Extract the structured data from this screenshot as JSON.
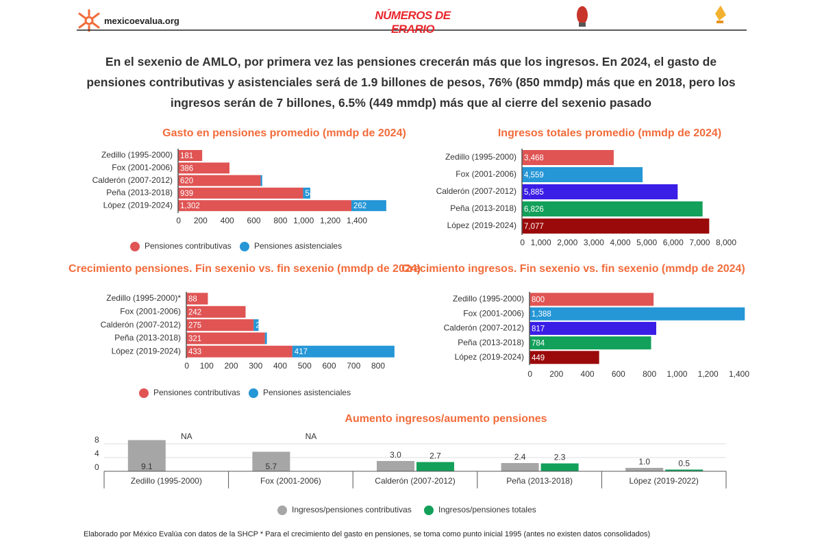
{
  "header": {
    "site": "mexicoevalua.org",
    "brand": "NÚMEROS DE ERARIO"
  },
  "headline": "En el sexenio de AMLO, por primera vez las pensiones crecerán más que los ingresos. En 2024, el gasto de pensiones contributivas y asistenciales será de 1.9 billones de pesos, 76% (850 mmdp) más que en 2018, pero los ingresos serán de 7 billones, 6.5% (449 mmdp) más que al cierre del sexenio pasado",
  "footer": "Elaborado por México Evalúa con datos de la SHCP * Para el crecimiento del gasto en pensiones, se toma como punto inicial 1995 (antes no existen datos consolidados)",
  "chart_data": [
    {
      "type": "hbar",
      "title": "Gasto en pensiones promedio (mmdp de 2024)",
      "categories": [
        "Zedillo (1995-2000)",
        "Fox (2001-2006)",
        "Calderón (2007-2012)",
        "Peña (2013-2018)",
        "López (2019-2024)"
      ],
      "series": [
        {
          "name": "Pensiones contributivas",
          "color": "#e05454",
          "values": [
            181,
            386,
            620,
            939,
            1302
          ],
          "value_labels": [
            "181",
            "386",
            "620",
            "939",
            "1,302"
          ]
        },
        {
          "name": "Pensiones asistenciales",
          "color": "#2596d6",
          "values": [
            null,
            null,
            12,
            54,
            262
          ]
        }
      ],
      "xlim": [
        0,
        1400
      ],
      "xticks": [
        0,
        200,
        400,
        600,
        800,
        {
          "value": 1000,
          "label": "1,000"
        },
        {
          "value": 1200,
          "label": "1,200"
        },
        {
          "value": 1400,
          "label": "1,400"
        }
      ]
    },
    {
      "type": "hbar",
      "title": "Ingresos totales promedio (mmdp de 2024)",
      "categories": [
        "Zedillo (1995-2000)",
        "Fox (2001-2006)",
        "Calderón (2007-2012)",
        "Peña (2013-2018)",
        "López (2019-2024)"
      ],
      "values": [
        3468,
        4559,
        5885,
        6826,
        7077
      ],
      "value_labels": [
        "3,468",
        "4,559",
        "5,885",
        "6,826",
        "7,077"
      ],
      "colors": [
        "#e05454",
        "#2596d6",
        "#3a1ee6",
        "#13a05a",
        "#9b0a0a"
      ],
      "xlim": [
        0,
        8000
      ],
      "xticks": [
        0,
        {
          "value": 1000,
          "label": "1,000"
        },
        {
          "value": 2000,
          "label": "2,000"
        },
        {
          "value": 3000,
          "label": "3,000"
        },
        {
          "value": 4000,
          "label": "4,000"
        },
        {
          "value": 5000,
          "label": "5,000"
        },
        {
          "value": 6000,
          "label": "6,000"
        },
        {
          "value": 7000,
          "label": "7,000"
        },
        {
          "value": 8000,
          "label": "8,000"
        }
      ]
    },
    {
      "type": "hbar",
      "title": "Crecimiento pensiones. Fin sexenio vs. fin sexenio (mmdp de 2024)",
      "categories": [
        "Zedillo (1995-2000)*",
        "Fox (2001-2006)",
        "Calderón (2007-2012)",
        "Peña (2013-2018)",
        "López (2019-2024)"
      ],
      "series": [
        {
          "name": "Pensiones contributivas",
          "color": "#e05454",
          "values": [
            88,
            242,
            275,
            321,
            433
          ]
        },
        {
          "name": "Pensiones asistenciales",
          "color": "#2596d6",
          "values": [
            null,
            null,
            20,
            8,
            417
          ]
        }
      ],
      "xlim": [
        0,
        800
      ],
      "xticks": [
        0,
        100,
        200,
        300,
        400,
        500,
        600,
        700,
        800
      ]
    },
    {
      "type": "hbar",
      "title": "Crecimiento ingresos. Fin sexenio vs. fin sexenio (mmdp de 2024)",
      "categories": [
        "Zedillo (1995-2000)",
        "Fox (2001-2006)",
        "Calderón (2007-2012)",
        "Peña (2013-2018)",
        "López (2019-2024)"
      ],
      "values": [
        800,
        1388,
        817,
        784,
        449
      ],
      "value_labels": [
        "800",
        "1,388",
        "817",
        "784",
        "449"
      ],
      "colors": [
        "#e05454",
        "#2596d6",
        "#3a1ee6",
        "#13a05a",
        "#9b0a0a"
      ],
      "xlim": [
        0,
        1400
      ],
      "xticks": [
        0,
        200,
        400,
        600,
        800,
        {
          "value": 1000,
          "label": "1,000"
        },
        {
          "value": 1200,
          "label": "1,200"
        },
        {
          "value": 1400,
          "label": "1,400"
        }
      ]
    },
    {
      "type": "bar",
      "title": "Aumento ingresos/aumento pensiones",
      "categories": [
        "Zedillo (1995-2000)",
        "Fox (2001-2006)",
        "Calderón (2007-2012)",
        "Peña (2013-2018)",
        "López (2019-2022)"
      ],
      "series": [
        {
          "name": "Ingresos/pensiones contributivas",
          "color": "#a6a6a6",
          "values": [
            9.1,
            5.7,
            3.0,
            2.4,
            1.0
          ],
          "value_labels": [
            "9.1",
            "5.7",
            "3.0",
            "2.4",
            "1.0"
          ]
        },
        {
          "name": "Ingresos/pensiones totales",
          "color": "#13a05a",
          "values": [
            null,
            null,
            2.7,
            2.3,
            0.5
          ],
          "value_labels": [
            "NA",
            "NA",
            "2.7",
            "2.3",
            "0.5"
          ]
        }
      ],
      "ylim": [
        0,
        8
      ],
      "yticks": [
        0,
        4,
        8
      ],
      "grid": true
    }
  ]
}
